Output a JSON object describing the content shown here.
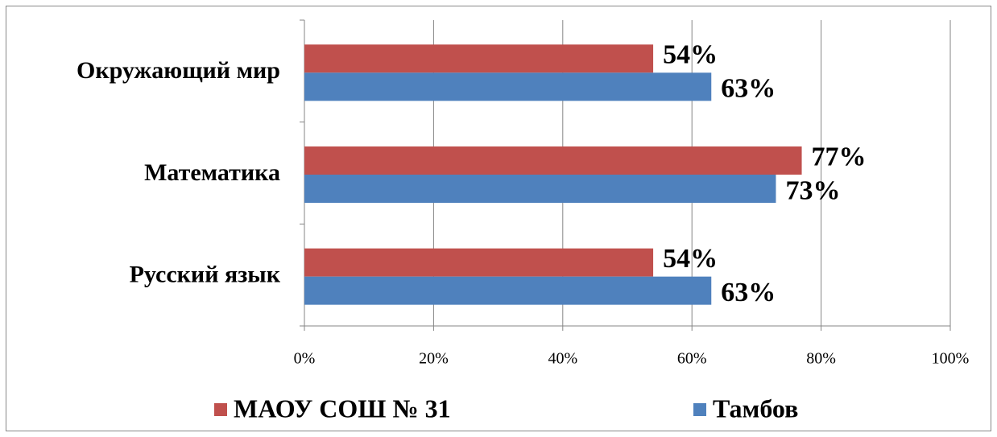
{
  "chart_data": {
    "type": "bar",
    "orientation": "horizontal",
    "categories": [
      "Русский язык",
      "Математика",
      "Окружающий мир"
    ],
    "series": [
      {
        "name": "МАОУ СОШ № 31",
        "color": "#c0504d",
        "values": [
          54,
          77,
          54
        ],
        "value_labels": [
          "54%",
          "77%",
          "54%"
        ]
      },
      {
        "name": "Тамбов",
        "color": "#4f81bd",
        "values": [
          63,
          73,
          63
        ],
        "value_labels": [
          "63%",
          "73%",
          "63%"
        ]
      }
    ],
    "xlim": [
      0,
      100
    ],
    "xticks": [
      {
        "value": 0,
        "label": "0%"
      },
      {
        "value": 20,
        "label": "20%"
      },
      {
        "value": 40,
        "label": "40%"
      },
      {
        "value": 60,
        "label": "60%"
      },
      {
        "value": 80,
        "label": "80%"
      },
      {
        "value": 100,
        "label": "100%"
      }
    ],
    "grid": true,
    "legend": "bottom"
  }
}
